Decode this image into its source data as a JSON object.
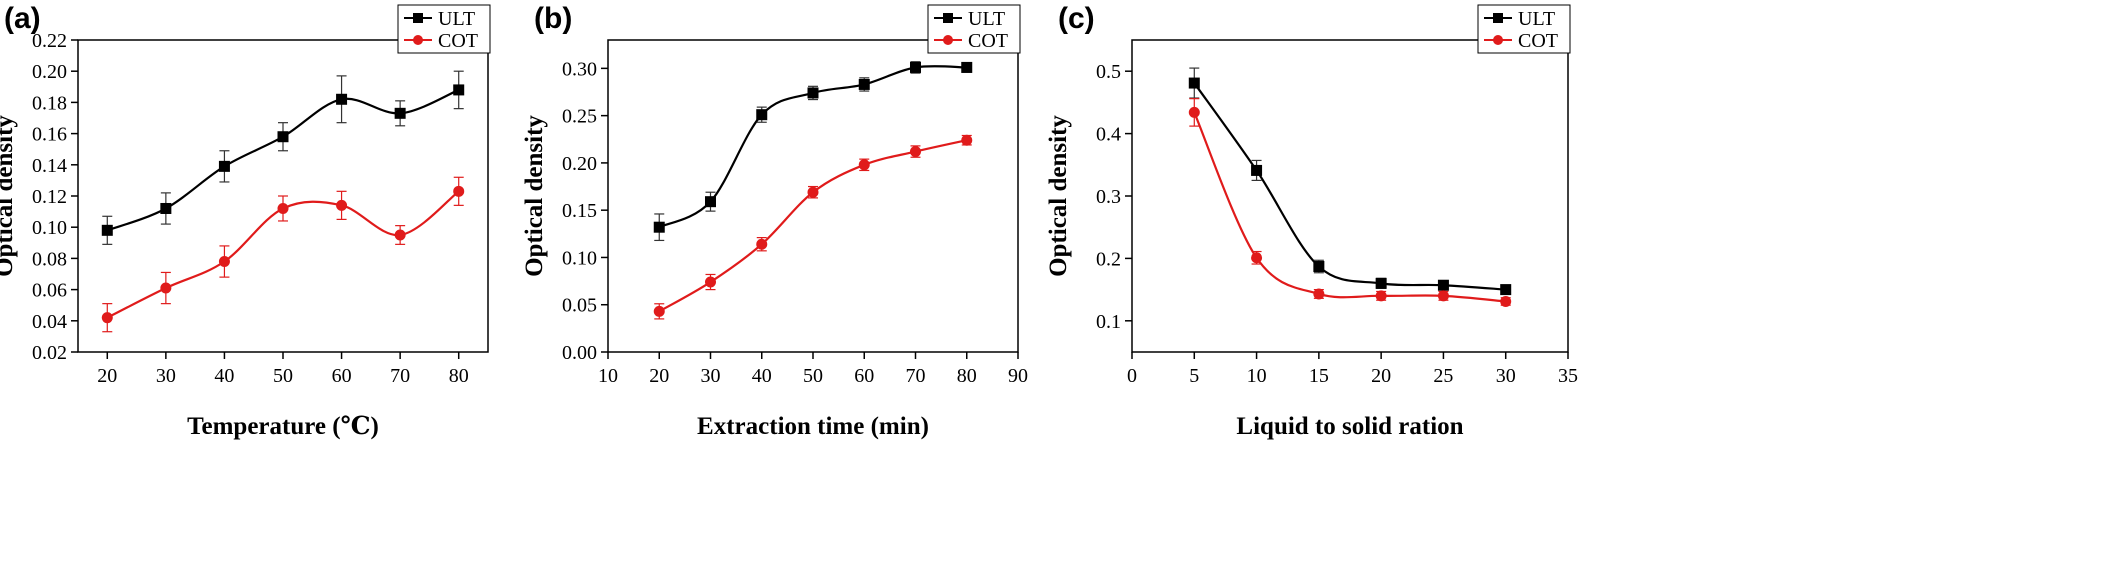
{
  "colors": {
    "ULT": "#000000",
    "COT": "#e01b1b"
  },
  "chart_data": [
    {
      "type": "line",
      "panel_label": "(a)",
      "xlabel": "Temperature (℃)",
      "ylabel": "Optical density",
      "xlim": [
        15,
        85
      ],
      "ylim": [
        0.02,
        0.22
      ],
      "xticks": [
        20,
        30,
        40,
        50,
        60,
        70,
        80
      ],
      "yticks": [
        "0.02",
        "0.04",
        "0.06",
        "0.08",
        "0.10",
        "0.12",
        "0.14",
        "0.16",
        "0.18",
        "0.20",
        "0.22"
      ],
      "x": [
        20,
        30,
        40,
        50,
        60,
        70,
        80
      ],
      "legend_position": "top-right",
      "series": [
        {
          "name": "ULT",
          "marker": "square",
          "values": [
            0.098,
            0.112,
            0.139,
            0.158,
            0.182,
            0.173,
            0.188
          ],
          "errors": [
            0.009,
            0.01,
            0.01,
            0.009,
            0.015,
            0.008,
            0.012
          ]
        },
        {
          "name": "COT",
          "marker": "circle",
          "values": [
            0.042,
            0.061,
            0.078,
            0.112,
            0.114,
            0.095,
            0.123
          ],
          "errors": [
            0.009,
            0.01,
            0.01,
            0.008,
            0.009,
            0.006,
            0.009
          ]
        }
      ]
    },
    {
      "type": "line",
      "panel_label": "(b)",
      "xlabel": "Extraction time (min)",
      "ylabel": "Optical density",
      "xlim": [
        10,
        90
      ],
      "ylim": [
        0.0,
        0.33
      ],
      "xticks": [
        10,
        20,
        30,
        40,
        50,
        60,
        70,
        80,
        90
      ],
      "yticks": [
        "0.00",
        "0.05",
        "0.10",
        "0.15",
        "0.20",
        "0.25",
        "0.30"
      ],
      "x": [
        20,
        30,
        40,
        50,
        60,
        70,
        80
      ],
      "legend_position": "top-right",
      "series": [
        {
          "name": "ULT",
          "marker": "square",
          "values": [
            0.132,
            0.159,
            0.251,
            0.274,
            0.283,
            0.301,
            0.301
          ],
          "errors": [
            0.014,
            0.01,
            0.008,
            0.007,
            0.007,
            0.006,
            0.005
          ]
        },
        {
          "name": "COT",
          "marker": "circle",
          "values": [
            0.043,
            0.074,
            0.114,
            0.169,
            0.198,
            0.212,
            0.224
          ],
          "errors": [
            0.008,
            0.008,
            0.007,
            0.006,
            0.006,
            0.006,
            0.005
          ]
        }
      ]
    },
    {
      "type": "line",
      "panel_label": "(c)",
      "xlabel": "Liquid to solid ration",
      "ylabel": "Optical density",
      "xlim": [
        0,
        35
      ],
      "ylim": [
        0.05,
        0.55
      ],
      "xticks": [
        0,
        5,
        10,
        15,
        20,
        25,
        30,
        35
      ],
      "yticks": [
        "0.1",
        "0.2",
        "0.3",
        "0.4",
        "0.5"
      ],
      "x": [
        5,
        10,
        15,
        20,
        25,
        30
      ],
      "legend_position": "top-right",
      "series": [
        {
          "name": "ULT",
          "marker": "square",
          "values": [
            0.481,
            0.341,
            0.187,
            0.16,
            0.157,
            0.15
          ],
          "errors": [
            0.024,
            0.016,
            0.01,
            0.008,
            0.007,
            0.007
          ]
        },
        {
          "name": "COT",
          "marker": "circle",
          "values": [
            0.434,
            0.201,
            0.143,
            0.14,
            0.14,
            0.131
          ],
          "errors": [
            0.022,
            0.01,
            0.007,
            0.007,
            0.007,
            0.006
          ]
        }
      ]
    }
  ]
}
